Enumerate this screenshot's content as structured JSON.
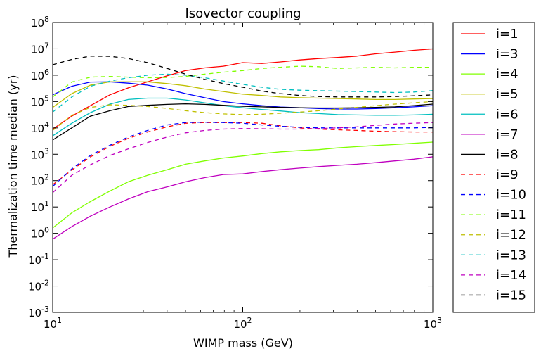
{
  "chart_data": {
    "type": "line",
    "title": "Isovector coupling",
    "xlabel": "WIMP mass (GeV)",
    "ylabel": "Thermalization time median (yr)",
    "xscale": "log",
    "yscale": "log",
    "xlim": [
      10,
      1000
    ],
    "ylim": [
      0.001,
      100000000
    ],
    "x_ticks": [
      {
        "value": 10,
        "base": "10",
        "exp": "1"
      },
      {
        "value": 100,
        "base": "10",
        "exp": "2"
      },
      {
        "value": 1000,
        "base": "10",
        "exp": "3"
      }
    ],
    "y_ticks": [
      {
        "value": 0.001,
        "base": "10",
        "exp": "-3"
      },
      {
        "value": 0.01,
        "base": "10",
        "exp": "-2"
      },
      {
        "value": 0.1,
        "base": "10",
        "exp": "-1"
      },
      {
        "value": 1,
        "base": "10",
        "exp": "0"
      },
      {
        "value": 10,
        "base": "10",
        "exp": "1"
      },
      {
        "value": 100,
        "base": "10",
        "exp": "2"
      },
      {
        "value": 1000,
        "base": "10",
        "exp": "3"
      },
      {
        "value": 10000,
        "base": "10",
        "exp": "4"
      },
      {
        "value": 100000,
        "base": "10",
        "exp": "5"
      },
      {
        "value": 1000000,
        "base": "10",
        "exp": "6"
      },
      {
        "value": 10000000,
        "base": "10",
        "exp": "7"
      },
      {
        "value": 100000000,
        "base": "10",
        "exp": "8"
      }
    ],
    "legend_position": "outside-right",
    "series": [
      {
        "name": "i=1",
        "color": "#ff0000",
        "dash": "solid",
        "x": [
          10,
          12.6,
          15.8,
          20,
          25,
          31.6,
          40,
          50,
          63,
          79,
          100,
          126,
          158,
          200,
          251,
          316,
          398,
          500,
          631,
          794,
          1000
        ],
        "y": [
          9000,
          28000,
          70000,
          180000,
          330000,
          560000,
          950000,
          1500000,
          1900000,
          2200000,
          3000000,
          2800000,
          3200000,
          3800000,
          4300000,
          4700000,
          5300000,
          6500000,
          7500000,
          8800000,
          10000000
        ]
      },
      {
        "name": "i=3",
        "color": "#0000ff",
        "dash": "solid",
        "x": [
          10,
          12.6,
          15.8,
          20,
          25,
          31.6,
          40,
          50,
          63,
          79,
          100,
          126,
          158,
          200,
          251,
          316,
          398,
          500,
          631,
          794,
          1000
        ],
        "y": [
          180000,
          380000,
          550000,
          560000,
          500000,
          420000,
          300000,
          200000,
          140000,
          100000,
          82000,
          70000,
          62000,
          58000,
          54000,
          52000,
          52000,
          54000,
          58000,
          63000,
          70000
        ]
      },
      {
        "name": "i=4",
        "color": "#80ff00",
        "dash": "solid",
        "x": [
          10,
          12.6,
          15.8,
          20,
          25,
          31.6,
          40,
          50,
          63,
          79,
          100,
          126,
          158,
          200,
          251,
          316,
          398,
          500,
          631,
          794,
          1000
        ],
        "y": [
          1.6,
          6,
          16,
          40,
          90,
          160,
          260,
          420,
          560,
          720,
          860,
          1060,
          1240,
          1380,
          1500,
          1750,
          1950,
          2150,
          2350,
          2600,
          2900
        ]
      },
      {
        "name": "i=5",
        "color": "#bfbf00",
        "dash": "solid",
        "x": [
          10,
          12.6,
          15.8,
          20,
          25,
          31.6,
          40,
          50,
          63,
          79,
          100,
          126,
          158,
          200,
          251,
          316,
          398,
          500,
          631,
          794,
          1000
        ],
        "y": [
          60000,
          200000,
          420000,
          560000,
          560000,
          560000,
          480000,
          400000,
          300000,
          240000,
          190000,
          170000,
          150000,
          140000,
          135000,
          130000,
          125000,
          120000,
          120000,
          125000,
          130000
        ]
      },
      {
        "name": "i=6",
        "color": "#00bfbf",
        "dash": "solid",
        "x": [
          10,
          12.6,
          15.8,
          20,
          25,
          31.6,
          40,
          50,
          63,
          79,
          100,
          126,
          158,
          200,
          251,
          316,
          398,
          500,
          631,
          794,
          1000
        ],
        "y": [
          5000,
          15000,
          38000,
          80000,
          120000,
          135000,
          135000,
          115000,
          90000,
          70000,
          58000,
          50000,
          44000,
          38000,
          35000,
          32000,
          31000,
          30000,
          30000,
          31000,
          33000
        ]
      },
      {
        "name": "i=7",
        "color": "#bf00bf",
        "dash": "solid",
        "x": [
          10,
          12.6,
          15.8,
          20,
          25,
          31.6,
          40,
          50,
          63,
          79,
          100,
          126,
          158,
          200,
          251,
          316,
          398,
          500,
          631,
          794,
          1000
        ],
        "y": [
          0.6,
          1.8,
          4.5,
          10,
          20,
          38,
          58,
          90,
          130,
          170,
          180,
          220,
          260,
          300,
          340,
          380,
          420,
          480,
          560,
          650,
          800
        ]
      },
      {
        "name": "i=8",
        "color": "#000000",
        "dash": "solid",
        "x": [
          10,
          12.6,
          15.8,
          20,
          25,
          31.6,
          40,
          50,
          63,
          79,
          100,
          126,
          158,
          200,
          251,
          316,
          398,
          500,
          631,
          794,
          1000
        ],
        "y": [
          3500,
          10000,
          28000,
          45000,
          65000,
          72000,
          78000,
          82000,
          78000,
          72000,
          66000,
          63000,
          60000,
          58000,
          57000,
          57000,
          58000,
          60000,
          63000,
          70000,
          80000
        ]
      },
      {
        "name": "i=9",
        "color": "#ff0000",
        "dash": "dashed",
        "x": [
          10,
          12.6,
          15.8,
          20,
          25,
          31.6,
          40,
          50,
          63,
          79,
          100,
          126,
          158,
          200,
          251,
          316,
          398,
          500,
          631,
          794,
          1000
        ],
        "y": [
          70,
          250,
          800,
          2000,
          4000,
          7000,
          11000,
          15000,
          16000,
          16000,
          16000,
          15000,
          12000,
          10000,
          9000,
          8500,
          8000,
          7500,
          7200,
          7000,
          7000
        ]
      },
      {
        "name": "i=10",
        "color": "#0000ff",
        "dash": "dashed",
        "x": [
          10,
          12.6,
          15.8,
          20,
          25,
          31.6,
          40,
          50,
          63,
          79,
          100,
          126,
          158,
          200,
          251,
          316,
          398,
          500,
          631,
          794,
          1000
        ],
        "y": [
          60,
          280,
          900,
          2200,
          4500,
          8000,
          13000,
          16000,
          16500,
          16000,
          15000,
          13000,
          11500,
          10500,
          10000,
          10000,
          10000,
          10000,
          10000,
          10000,
          10500
        ]
      },
      {
        "name": "i=11",
        "color": "#80ff00",
        "dash": "dashed",
        "x": [
          10,
          12.6,
          15.8,
          20,
          25,
          31.6,
          40,
          50,
          63,
          79,
          100,
          126,
          158,
          200,
          251,
          316,
          398,
          500,
          631,
          794,
          1000
        ],
        "y": [
          150000,
          550000,
          850000,
          900000,
          850000,
          800000,
          820000,
          900000,
          1100000,
          1300000,
          1500000,
          1800000,
          2000000,
          2200000,
          2100000,
          1800000,
          1900000,
          2000000,
          1900000,
          2000000,
          2000000
        ]
      },
      {
        "name": "i=12",
        "color": "#bfbf00",
        "dash": "dashed",
        "x": [
          10,
          12.6,
          15.8,
          20,
          25,
          31.6,
          40,
          50,
          63,
          79,
          100,
          126,
          158,
          200,
          251,
          316,
          398,
          500,
          631,
          794,
          1000
        ],
        "y": [
          8000,
          30000,
          60000,
          75000,
          72000,
          65000,
          55000,
          45000,
          38000,
          34000,
          32000,
          33000,
          36000,
          40000,
          45000,
          52000,
          60000,
          70000,
          80000,
          90000,
          100000
        ]
      },
      {
        "name": "i=13",
        "color": "#00bfbf",
        "dash": "dashed",
        "x": [
          10,
          12.6,
          15.8,
          20,
          25,
          31.6,
          40,
          50,
          63,
          79,
          100,
          126,
          158,
          200,
          251,
          316,
          398,
          500,
          631,
          794,
          1000
        ],
        "y": [
          40000,
          150000,
          380000,
          600000,
          800000,
          1000000,
          1100000,
          1000000,
          800000,
          600000,
          450000,
          350000,
          290000,
          270000,
          260000,
          250000,
          240000,
          230000,
          220000,
          230000,
          260000
        ]
      },
      {
        "name": "i=14",
        "color": "#bf00bf",
        "dash": "dashed",
        "x": [
          10,
          12.6,
          15.8,
          20,
          25,
          31.6,
          40,
          50,
          63,
          79,
          100,
          126,
          158,
          200,
          251,
          316,
          398,
          500,
          631,
          794,
          1000
        ],
        "y": [
          35,
          160,
          400,
          900,
          1600,
          2800,
          4500,
          6500,
          8000,
          9000,
          9500,
          9300,
          9000,
          9000,
          9500,
          10000,
          11000,
          12500,
          14000,
          15000,
          16000
        ]
      },
      {
        "name": "i=15",
        "color": "#000000",
        "dash": "dashed",
        "x": [
          10,
          12.6,
          15.8,
          20,
          25,
          31.6,
          40,
          50,
          63,
          79,
          100,
          126,
          158,
          200,
          251,
          316,
          398,
          500,
          631,
          794,
          1000
        ],
        "y": [
          2500000,
          4000000,
          5300000,
          5200000,
          4300000,
          3000000,
          1800000,
          1100000,
          700000,
          480000,
          350000,
          250000,
          200000,
          170000,
          155000,
          150000,
          150000,
          150000,
          155000,
          165000,
          180000
        ]
      }
    ]
  }
}
